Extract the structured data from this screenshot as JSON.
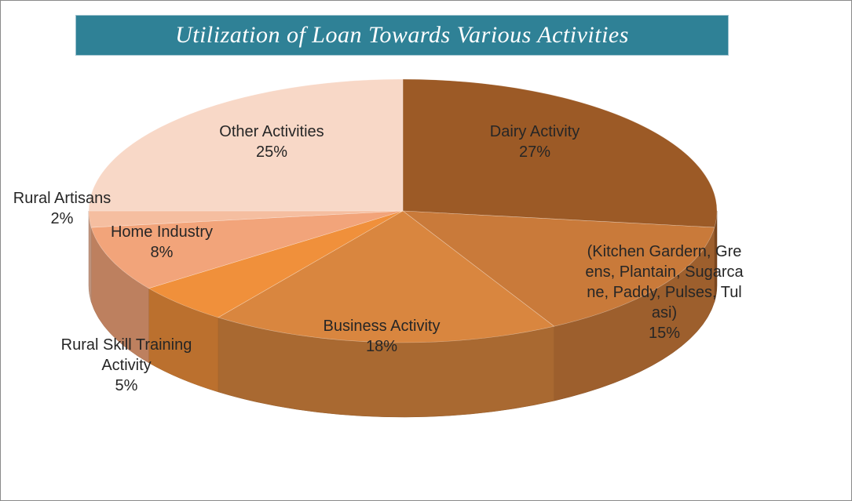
{
  "chart_data": {
    "type": "pie",
    "title": "Utilization of Loan Towards Various Activities",
    "categories": [
      "Dairy Activity",
      "(Kitchen Gardern, Greens, Plantain, Sugarcane, Paddy, Pulses, Tulasi)",
      "Business Activity",
      "Rural Skill Training Activity",
      "Home Industry",
      "Rural Artisans",
      "Other Activities"
    ],
    "values": [
      27,
      15,
      18,
      5,
      8,
      2,
      25
    ],
    "value_labels": [
      "27%",
      "15%",
      "18%",
      "5%",
      "8%",
      "2%",
      "25%"
    ],
    "colors": [
      "#9c5a26",
      "#c97a3a",
      "#d9863f",
      "#f0903b",
      "#f2a47a",
      "#f5bea0",
      "#f8d8c7"
    ]
  }
}
